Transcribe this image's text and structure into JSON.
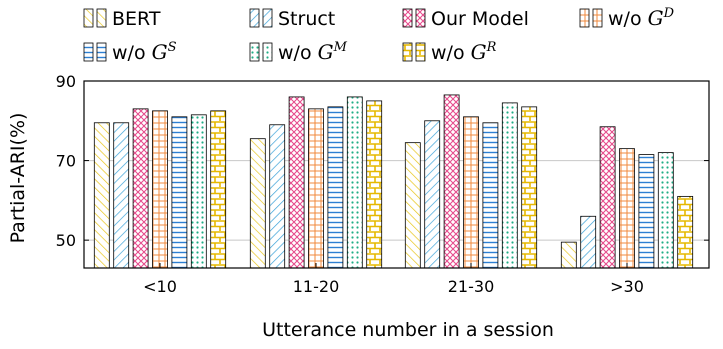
{
  "chart_data": {
    "type": "bar",
    "categories": [
      "<10",
      "11-20",
      "21-30",
      ">30"
    ],
    "xlabel": "Utterance number in a session",
    "ylabel": "Partial-ARI(%)",
    "ylim": [
      43,
      90
    ],
    "yticks": [
      "50",
      "70",
      "90"
    ],
    "grid": true,
    "legend": "top",
    "series": [
      {
        "name": "BERT",
        "base": "",
        "sup": "",
        "values": [
          79.5,
          75.5,
          74.5,
          49.5
        ],
        "color": "#e8c61e",
        "pattern": "diag-left"
      },
      {
        "name": "Struct",
        "base": "",
        "sup": "",
        "values": [
          79.5,
          79.0,
          80.0,
          56.0
        ],
        "color": "#3ca2d8",
        "pattern": "diag-right"
      },
      {
        "name": "Our Model",
        "base": "",
        "sup": "",
        "values": [
          83.0,
          86.0,
          86.5,
          78.5
        ],
        "color": "#e64b8c",
        "pattern": "crosshatch"
      },
      {
        "name": "w/o G^D",
        "base": "w/o ",
        "sup": "D",
        "values": [
          82.5,
          83.0,
          81.0,
          73.0
        ],
        "color": "#f08a3c",
        "pattern": "grid"
      },
      {
        "name": "w/o G^S",
        "base": "w/o ",
        "sup": "S",
        "values": [
          81.0,
          83.5,
          79.5,
          71.5
        ],
        "color": "#2d7fd2",
        "pattern": "horizontal"
      },
      {
        "name": "w/o G^M",
        "base": "w/o ",
        "sup": "M",
        "values": [
          81.5,
          86.0,
          84.5,
          72.0
        ],
        "color": "#1fae86",
        "pattern": "dots"
      },
      {
        "name": "w/o G^R",
        "base": "w/o ",
        "sup": "R",
        "values": [
          82.5,
          85.0,
          83.5,
          61.0
        ],
        "color": "#e6b800",
        "pattern": "bricks"
      }
    ]
  }
}
